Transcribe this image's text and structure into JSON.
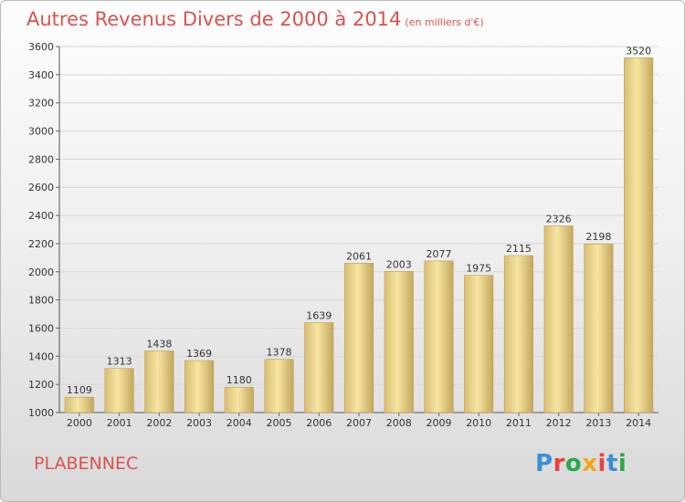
{
  "title": {
    "main": "Autres Revenus Divers de 2000 à 2014",
    "unit": "(en milliers d'€)"
  },
  "location": "PLABENNEC",
  "logo": {
    "text": "Proxiti",
    "colors": [
      "#3a8fd6",
      "#e8423a",
      "#2aa84a",
      "#f2a516",
      "#e8423a",
      "#3a8fd6",
      "#2aa84a"
    ]
  },
  "colors": {
    "title": "#d9534f",
    "bar_light": "#f6e29a",
    "bar_dark": "#c9ac62",
    "grid": "#d8d8d8"
  },
  "chart_data": {
    "type": "bar",
    "title": "Autres Revenus Divers de 2000 à 2014",
    "subtitle": "(en milliers d'€)",
    "categories": [
      "2000",
      "2001",
      "2002",
      "2003",
      "2004",
      "2005",
      "2006",
      "2007",
      "2008",
      "2009",
      "2010",
      "2011",
      "2012",
      "2013",
      "2014"
    ],
    "values": [
      1109,
      1313,
      1438,
      1369,
      1180,
      1378,
      1639,
      2061,
      2003,
      2077,
      1975,
      2115,
      2326,
      2198,
      3520
    ],
    "ylim": [
      1000,
      3600
    ],
    "yticks": [
      1000,
      1200,
      1400,
      1600,
      1800,
      2000,
      2200,
      2400,
      2600,
      2800,
      3000,
      3200,
      3400,
      3600
    ],
    "grid": true,
    "xlabel": "",
    "ylabel": ""
  }
}
